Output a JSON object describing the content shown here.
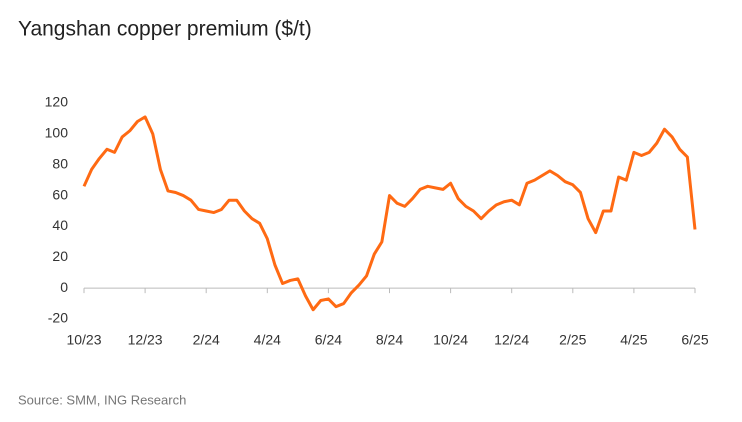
{
  "chart_data": {
    "type": "line",
    "title": "Yangshan copper premium ($/t)",
    "source": "Source: SMM, ING Research",
    "categories": [
      "10/23",
      null,
      null,
      null,
      null,
      null,
      null,
      null,
      "12/23",
      null,
      null,
      null,
      null,
      null,
      null,
      null,
      "2/24",
      null,
      null,
      null,
      null,
      null,
      null,
      null,
      "4/24",
      null,
      null,
      null,
      null,
      null,
      null,
      null,
      "6/24",
      null,
      null,
      null,
      null,
      null,
      null,
      null,
      "8/24",
      null,
      null,
      null,
      null,
      null,
      null,
      null,
      "10/24",
      null,
      null,
      null,
      null,
      null,
      null,
      null,
      "12/24",
      null,
      null,
      null,
      null,
      null,
      null,
      null,
      "2/25",
      null,
      null,
      null,
      null,
      null,
      null,
      null,
      "4/25",
      null,
      null,
      null,
      null,
      null,
      null,
      null,
      "6/25"
    ],
    "series": [
      {
        "name": "Yangshan copper premium",
        "color": "#ff6a13",
        "values": [
          66,
          77,
          84,
          90,
          88,
          98,
          102,
          108,
          111,
          100,
          77,
          63,
          62,
          60,
          57,
          51,
          50,
          49,
          51,
          57,
          57,
          50,
          45,
          42,
          32,
          15,
          3,
          5,
          6,
          -5,
          -14,
          -8,
          -7,
          -12,
          -10,
          -3,
          2,
          8,
          22,
          30,
          60,
          55,
          53,
          58,
          64,
          66,
          65,
          64,
          68,
          58,
          53,
          50,
          45,
          50,
          54,
          56,
          57,
          54,
          68,
          70,
          73,
          76,
          73,
          69,
          67,
          62,
          45,
          36,
          50,
          50,
          72,
          70,
          88,
          86,
          88,
          94,
          103,
          98,
          90,
          85,
          38
        ]
      }
    ],
    "ylim": [
      -20,
      120
    ],
    "yticks": [
      -20,
      0,
      20,
      40,
      60,
      80,
      100,
      120
    ],
    "grid": false
  }
}
